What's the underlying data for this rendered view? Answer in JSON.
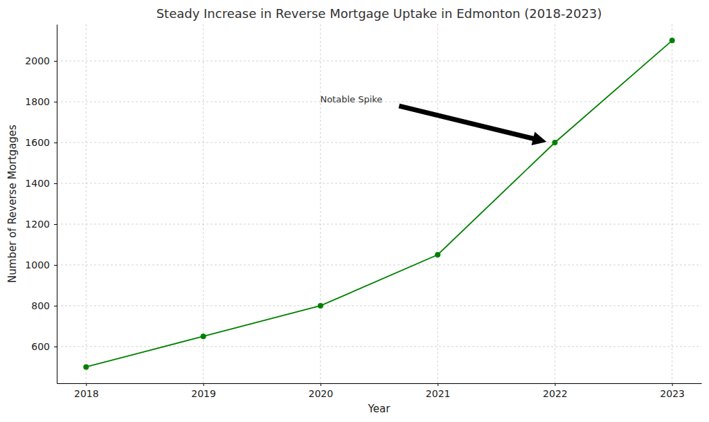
{
  "chart_data": {
    "type": "line",
    "title": "Steady Increase in Reverse Mortgage Uptake in Edmonton (2018-2023)",
    "x_label": "Year",
    "y_label": "Number of Reverse Mortgages",
    "x": [
      2018,
      2019,
      2020,
      2021,
      2022,
      2023
    ],
    "values": [
      500,
      650,
      800,
      1050,
      1600,
      2100
    ],
    "color": "green",
    "marker": "circle",
    "xlim": [
      2017.75,
      2023.25
    ],
    "xticks": [
      2018,
      2019,
      2020,
      2021,
      2022,
      2023
    ],
    "ylim": [
      420,
      2180
    ],
    "yticks": [
      600,
      800,
      1000,
      1200,
      1400,
      1600,
      1800,
      2000
    ],
    "grid": true,
    "annotations": [
      {
        "text": "Notable Spike",
        "x": 2022,
        "y": 1600
      }
    ]
  }
}
